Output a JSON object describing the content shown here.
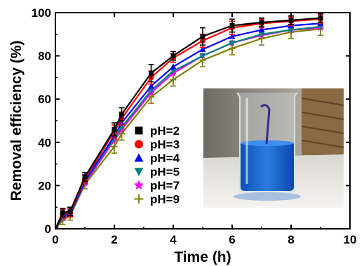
{
  "chart_data": {
    "type": "line",
    "title": "",
    "xlabel": "Time (h)",
    "ylabel": "Removal efficiency (%)",
    "xlim": [
      0,
      10
    ],
    "ylim": [
      0,
      100
    ],
    "x_ticks": [
      "0",
      "2",
      "4",
      "6",
      "8",
      "10"
    ],
    "y_ticks": [
      "0",
      "20",
      "40",
      "60",
      "80",
      "100"
    ],
    "grid": false,
    "legend_position": "bottom-left inside plot",
    "x": [
      0,
      0.25,
      0.5,
      1,
      2,
      2.25,
      3.25,
      4,
      5,
      6,
      7,
      8,
      9
    ],
    "series": [
      {
        "name": "pH=2",
        "color": "#000000",
        "marker": "square",
        "values": [
          0,
          7.5,
          8,
          24,
          46,
          53,
          72,
          80,
          89,
          94,
          95.5,
          96.5,
          97.5
        ],
        "errors": [
          0,
          2,
          2,
          2,
          3,
          3,
          4,
          2,
          4,
          3,
          2,
          2,
          2
        ]
      },
      {
        "name": "pH=3",
        "color": "#ff0000",
        "marker": "circle",
        "values": [
          0,
          7,
          7.5,
          23,
          45,
          51,
          70,
          79,
          87,
          93,
          95,
          96,
          97
        ],
        "errors": [
          0,
          2,
          2,
          2,
          3,
          3,
          3,
          2,
          3,
          3,
          2,
          2,
          2
        ]
      },
      {
        "name": "pH=4",
        "color": "#0000ff",
        "marker": "triangle-up",
        "values": [
          0,
          6,
          7,
          22,
          43,
          49,
          66,
          75,
          83,
          89,
          92,
          94,
          95
        ]
      },
      {
        "name": "pH=5",
        "color": "#008080",
        "marker": "triangle-down",
        "values": [
          0,
          5.5,
          6.5,
          21.5,
          42,
          47,
          64,
          73,
          80,
          86,
          90,
          92,
          93.5
        ]
      },
      {
        "name": "pH=7",
        "color": "#ff00ff",
        "marker": "star",
        "values": [
          0,
          5,
          6.5,
          21,
          41,
          46,
          63,
          72,
          80,
          86,
          89.5,
          92,
          93
        ]
      },
      {
        "name": "pH=9",
        "color": "#808000",
        "marker": "plus",
        "values": [
          0,
          4,
          6,
          20.5,
          38,
          44,
          61,
          69,
          78,
          83.5,
          88,
          91,
          92.5
        ],
        "errors": [
          0,
          2,
          2,
          2,
          3,
          3,
          3,
          3,
          3,
          3,
          3,
          3,
          3
        ]
      }
    ],
    "inset": {
      "icon": "beaker-photo",
      "description_visible": false
    }
  }
}
